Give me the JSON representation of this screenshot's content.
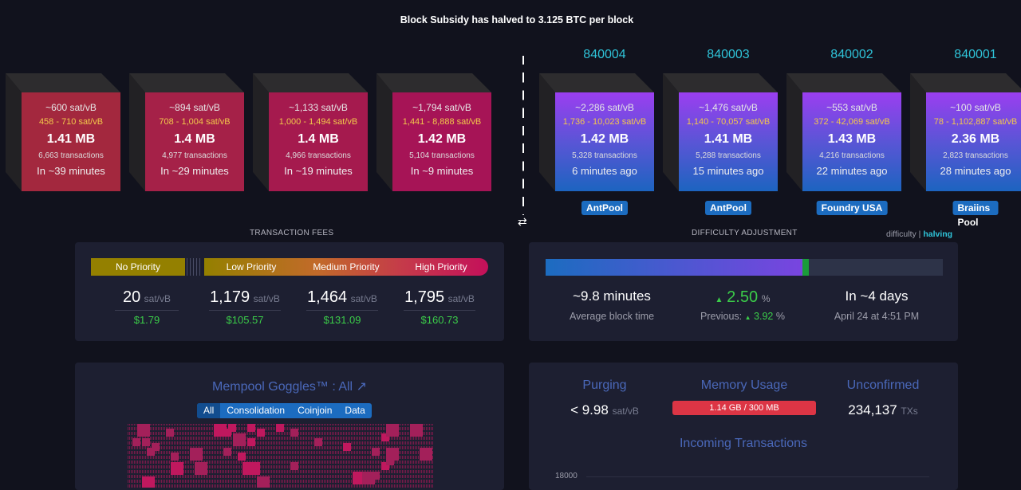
{
  "banner": "Block Subsidy has halved to 3.125 BTC per block",
  "mempool_blocks": [
    {
      "fee": "~600 sat/vB",
      "range": "458 - 710 sat/vB",
      "size": "1.41 MB",
      "txs": "6,663 transactions",
      "time": "In ~39 minutes",
      "color": "#a3283e"
    },
    {
      "fee": "~894 sat/vB",
      "range": "708 - 1,004 sat/vB",
      "size": "1.4 MB",
      "txs": "4,977 transactions",
      "time": "In ~29 minutes",
      "color": "#a52148"
    },
    {
      "fee": "~1,133 sat/vB",
      "range": "1,000 - 1,494 sat/vB",
      "size": "1.4 MB",
      "txs": "4,966 transactions",
      "time": "In ~19 minutes",
      "color": "#a51a4e"
    },
    {
      "fee": "~1,794 sat/vB",
      "range": "1,441 - 8,888 sat/vB",
      "size": "1.42 MB",
      "txs": "5,104 transactions",
      "time": "In ~9 minutes",
      "color": "#a61456"
    }
  ],
  "mined_blocks": [
    {
      "height": "840004",
      "fee": "~2,286 sat/vB",
      "range": "1,736 - 10,023 sat/vB",
      "size": "1.42 MB",
      "txs": "5,328 transactions",
      "time": "6 minutes ago",
      "pool": "AntPool"
    },
    {
      "height": "840003",
      "fee": "~1,476 sat/vB",
      "range": "1,140 - 70,057 sat/vB",
      "size": "1.41 MB",
      "txs": "5,288 transactions",
      "time": "15 minutes ago",
      "pool": "AntPool"
    },
    {
      "height": "840002",
      "fee": "~553 sat/vB",
      "range": "372 - 42,069 sat/vB",
      "size": "1.43 MB",
      "txs": "4,216 transactions",
      "time": "22 minutes ago",
      "pool": "Foundry USA"
    },
    {
      "height": "840001",
      "fee": "~100 sat/vB",
      "range": "78 - 1,102,887 sat/vB",
      "size": "2.36 MB",
      "txs": "2,823 transactions",
      "time": "28 minutes ago",
      "pool": "Braiins Pool"
    }
  ],
  "fees": {
    "title": "TRANSACTION FEES",
    "labels": [
      "No Priority",
      "Low Priority",
      "Medium Priority",
      "High Priority"
    ],
    "unit": "sat/vB",
    "values": [
      "20",
      "1,179",
      "1,464",
      "1,795"
    ],
    "usd": [
      "$1.79",
      "$105.57",
      "$131.09",
      "$160.73"
    ]
  },
  "difficulty": {
    "title": "DIFFICULTY ADJUSTMENT",
    "toggle_difficulty": "difficulty",
    "toggle_sep": "|",
    "toggle_halving": "halving",
    "progress_percent": 65.5,
    "avg_time": "~9.8 minutes",
    "avg_label": "Average block time",
    "change": "2.50",
    "pct": "%",
    "previous_label": "Previous:",
    "previous": "3.92",
    "eta": "In ~4 days",
    "eta_date": "April 24 at 4:51 PM"
  },
  "goggles": {
    "title": "Mempool Goggles™ : All",
    "tabs": [
      "All",
      "Consolidation",
      "Coinjoin",
      "Data"
    ]
  },
  "stats": {
    "purging_label": "Purging",
    "purging_value": "< 9.98",
    "purging_unit": "sat/vB",
    "memory_label": "Memory Usage",
    "memory_value": "1.14 GB / 300 MB",
    "unconfirmed_label": "Unconfirmed",
    "unconfirmed_value": "234,137",
    "unconfirmed_unit": "TXs",
    "incoming_title": "Incoming Transactions",
    "incoming_ytick": "18000"
  }
}
